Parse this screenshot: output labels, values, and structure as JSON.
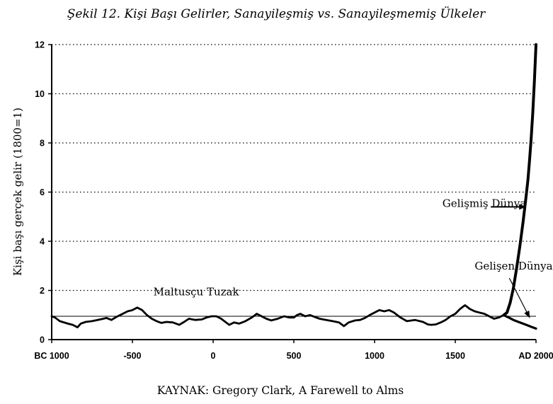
{
  "chart_data": {
    "type": "line",
    "title": "Şekil 12. Kişi Başı Gelirler, Sanayileşmiş vs. Sanayileşmemiş Ülkeler",
    "ylabel": "Kişi başı gerçek gelir (1800=1)",
    "xlabel": "",
    "source": "KAYNAK: Gregory Clark, A Farewell to Alms",
    "xlim": [
      -1000,
      2000
    ],
    "ylim": [
      0,
      12
    ],
    "x_ticks": [
      {
        "value": -1000,
        "label": "BC 1000"
      },
      {
        "value": -500,
        "label": "-500"
      },
      {
        "value": 0,
        "label": "0"
      },
      {
        "value": 500,
        "label": "500"
      },
      {
        "value": 1000,
        "label": "1000"
      },
      {
        "value": 1500,
        "label": "1500"
      },
      {
        "value": 2000,
        "label": "AD 2000"
      }
    ],
    "y_ticks": [
      0,
      2,
      4,
      6,
      8,
      10,
      12
    ],
    "grid": "horizontal-dotted",
    "reference_line": {
      "y": 0.95
    },
    "series": [
      {
        "name": "",
        "role": "malthusian",
        "points": [
          [
            -1000,
            0.95
          ],
          [
            -980,
            0.9
          ],
          [
            -950,
            0.75
          ],
          [
            -900,
            0.65
          ],
          [
            -870,
            0.6
          ],
          [
            -840,
            0.5
          ],
          [
            -820,
            0.65
          ],
          [
            -790,
            0.72
          ],
          [
            -750,
            0.75
          ],
          [
            -700,
            0.82
          ],
          [
            -660,
            0.88
          ],
          [
            -630,
            0.8
          ],
          [
            -600,
            0.92
          ],
          [
            -560,
            1.05
          ],
          [
            -530,
            1.15
          ],
          [
            -500,
            1.2
          ],
          [
            -470,
            1.3
          ],
          [
            -440,
            1.2
          ],
          [
            -410,
            1.0
          ],
          [
            -380,
            0.85
          ],
          [
            -350,
            0.75
          ],
          [
            -320,
            0.68
          ],
          [
            -290,
            0.72
          ],
          [
            -250,
            0.7
          ],
          [
            -210,
            0.6
          ],
          [
            -180,
            0.72
          ],
          [
            -150,
            0.85
          ],
          [
            -110,
            0.8
          ],
          [
            -70,
            0.82
          ],
          [
            -40,
            0.9
          ],
          [
            -10,
            0.95
          ],
          [
            20,
            0.95
          ],
          [
            50,
            0.85
          ],
          [
            80,
            0.7
          ],
          [
            100,
            0.6
          ],
          [
            130,
            0.7
          ],
          [
            160,
            0.65
          ],
          [
            200,
            0.75
          ],
          [
            240,
            0.9
          ],
          [
            270,
            1.05
          ],
          [
            300,
            0.95
          ],
          [
            330,
            0.85
          ],
          [
            360,
            0.78
          ],
          [
            400,
            0.85
          ],
          [
            440,
            0.95
          ],
          [
            470,
            0.9
          ],
          [
            500,
            0.9
          ],
          [
            520,
            1.0
          ],
          [
            540,
            1.05
          ],
          [
            570,
            0.95
          ],
          [
            600,
            1.0
          ],
          [
            630,
            0.92
          ],
          [
            660,
            0.85
          ],
          [
            700,
            0.8
          ],
          [
            740,
            0.75
          ],
          [
            780,
            0.7
          ],
          [
            810,
            0.55
          ],
          [
            840,
            0.7
          ],
          [
            880,
            0.78
          ],
          [
            910,
            0.8
          ],
          [
            940,
            0.88
          ],
          [
            970,
            1.0
          ],
          [
            1000,
            1.1
          ],
          [
            1030,
            1.2
          ],
          [
            1060,
            1.15
          ],
          [
            1090,
            1.2
          ],
          [
            1120,
            1.1
          ],
          [
            1160,
            0.9
          ],
          [
            1200,
            0.75
          ],
          [
            1250,
            0.8
          ],
          [
            1300,
            0.72
          ],
          [
            1330,
            0.62
          ],
          [
            1350,
            0.6
          ],
          [
            1380,
            0.62
          ],
          [
            1410,
            0.7
          ],
          [
            1440,
            0.8
          ],
          [
            1470,
            0.95
          ],
          [
            1500,
            1.05
          ],
          [
            1530,
            1.25
          ],
          [
            1560,
            1.4
          ],
          [
            1590,
            1.25
          ],
          [
            1620,
            1.15
          ],
          [
            1650,
            1.1
          ],
          [
            1680,
            1.05
          ],
          [
            1710,
            0.95
          ],
          [
            1740,
            0.85
          ],
          [
            1770,
            0.9
          ],
          [
            1800,
            1.0
          ]
        ]
      },
      {
        "name": "Gelişmiş Dünya",
        "role": "developed",
        "points": [
          [
            1800,
            1.0
          ],
          [
            1820,
            1.1
          ],
          [
            1840,
            1.5
          ],
          [
            1860,
            2.1
          ],
          [
            1880,
            2.9
          ],
          [
            1900,
            3.8
          ],
          [
            1920,
            4.8
          ],
          [
            1940,
            5.9
          ],
          [
            1950,
            6.5
          ],
          [
            1960,
            7.3
          ],
          [
            1970,
            8.2
          ],
          [
            1980,
            9.2
          ],
          [
            1990,
            10.5
          ],
          [
            2000,
            12.0
          ]
        ]
      },
      {
        "name": "Gelişen Dünya",
        "role": "developing",
        "points": [
          [
            1800,
            1.0
          ],
          [
            1830,
            0.9
          ],
          [
            1860,
            0.8
          ],
          [
            1900,
            0.7
          ],
          [
            1940,
            0.6
          ],
          [
            1970,
            0.52
          ],
          [
            2000,
            0.45
          ]
        ]
      }
    ],
    "annotations": [
      {
        "text": "Gelişmiş Dünya",
        "anchor": [
          1420,
          5.4
        ],
        "arrow_from": [
          1720,
          5.4
        ],
        "arrow_to": [
          1935,
          5.4
        ]
      },
      {
        "text": "Gelişen Dünya",
        "anchor": [
          1620,
          2.85
        ],
        "arrow_from": [
          1835,
          2.5
        ],
        "arrow_to": [
          1960,
          0.9
        ]
      },
      {
        "text": "Maltusçu Tuzak",
        "anchor": [
          -370,
          1.8
        ]
      }
    ]
  }
}
